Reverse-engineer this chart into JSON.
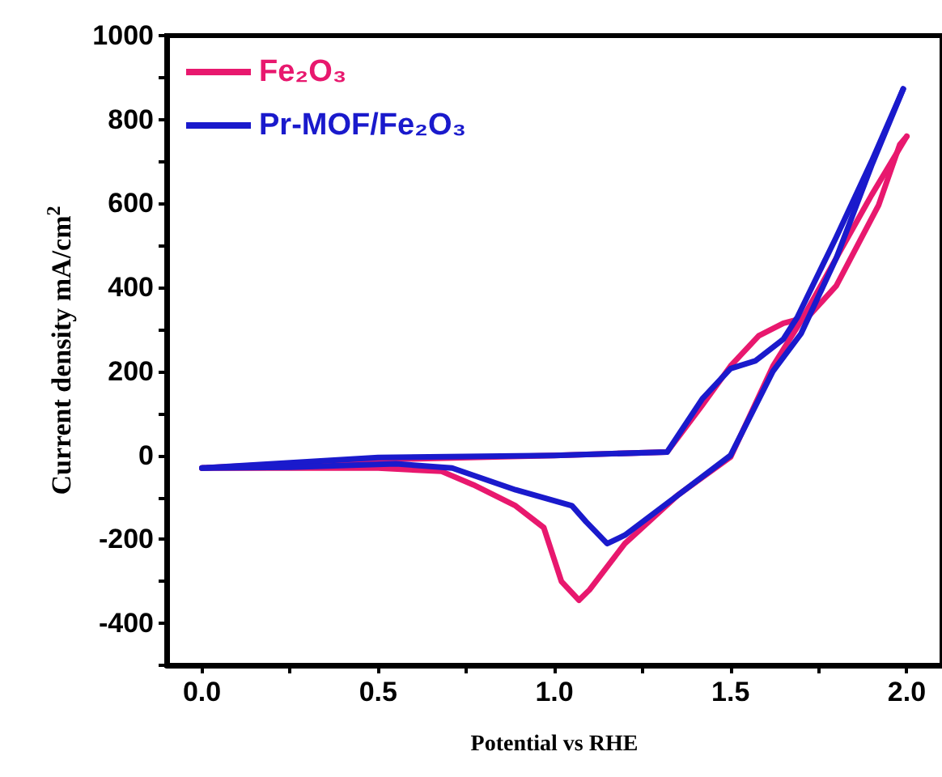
{
  "chart_data": {
    "type": "line",
    "xlabel": "Potential vs RHE",
    "ylabel": "Current density mA/cm$^{2}$",
    "xlim": [
      -0.1,
      2.1
    ],
    "ylim": [
      -500,
      1000
    ],
    "xticks": [
      {
        "value": 0,
        "label": "0.0"
      },
      {
        "value": 0.25,
        "label": null
      },
      {
        "value": 0.5,
        "label": "0.5"
      },
      {
        "value": 0.75,
        "label": null
      },
      {
        "value": 1,
        "label": "1.0"
      },
      {
        "value": 1.25,
        "label": null
      },
      {
        "value": 1.5,
        "label": "1.5"
      },
      {
        "value": 1.75,
        "label": null
      },
      {
        "value": 2,
        "label": "2.0"
      }
    ],
    "yticks": [
      {
        "value": -500,
        "label": null
      },
      -400,
      {
        "value": -300,
        "label": null
      },
      -200,
      {
        "value": -100,
        "label": null
      },
      0,
      {
        "value": 100,
        "label": null
      },
      200,
      {
        "value": 300,
        "label": null
      },
      400,
      {
        "value": 500,
        "label": null
      },
      600,
      {
        "value": 700,
        "label": null
      },
      800,
      {
        "value": 900,
        "label": null
      },
      1000
    ],
    "legend": "top left",
    "grid": false,
    "marker": "none",
    "line_style": "solid",
    "series": [
      {
        "name": "Fe₂O₃",
        "color": "#e8186e",
        "x": [
          0,
          0.5,
          1.0,
          1.32,
          1.42,
          1.5,
          1.58,
          1.65,
          1.72,
          1.8,
          1.92,
          1.98,
          2.0
        ],
        "values": [
          -30,
          -10,
          0,
          8,
          120,
          213,
          285,
          315,
          330,
          404,
          596,
          740,
          760
        ]
      },
      {
        "color": "#e8186e",
        "x": [
          0,
          0.25,
          0.5,
          0.68,
          0.77,
          0.89,
          0.97,
          1.02,
          1.07,
          1.1,
          1.2,
          1.35,
          1.5,
          1.62,
          1.7,
          1.8,
          1.9,
          2.0
        ],
        "values": [
          -30,
          -30,
          -30,
          -38,
          -70,
          -120,
          -172,
          -300,
          -345,
          -320,
          -210,
          -95,
          -4,
          212,
          320,
          470,
          620,
          760
        ]
      },
      {
        "name": "Pr-MOF/Fe₂O₃",
        "color": "#1a1acc",
        "x": [
          0,
          0.5,
          1.0,
          1.32,
          1.42,
          1.5,
          1.57,
          1.65,
          1.69,
          1.8,
          1.9,
          1.99
        ],
        "values": [
          -30,
          -5,
          0,
          8,
          135,
          207,
          225,
          277,
          330,
          520,
          700,
          873
        ]
      },
      {
        "color": "#1a1acc",
        "x": [
          0,
          0.25,
          0.55,
          0.71,
          0.89,
          1.05,
          1.09,
          1.15,
          1.2,
          1.35,
          1.5,
          1.62,
          1.7,
          1.8,
          1.9,
          1.99
        ],
        "values": [
          -30,
          -28,
          -20,
          -30,
          -82,
          -120,
          -158,
          -210,
          -190,
          -95,
          0,
          200,
          290,
          470,
          690,
          873
        ]
      }
    ]
  }
}
